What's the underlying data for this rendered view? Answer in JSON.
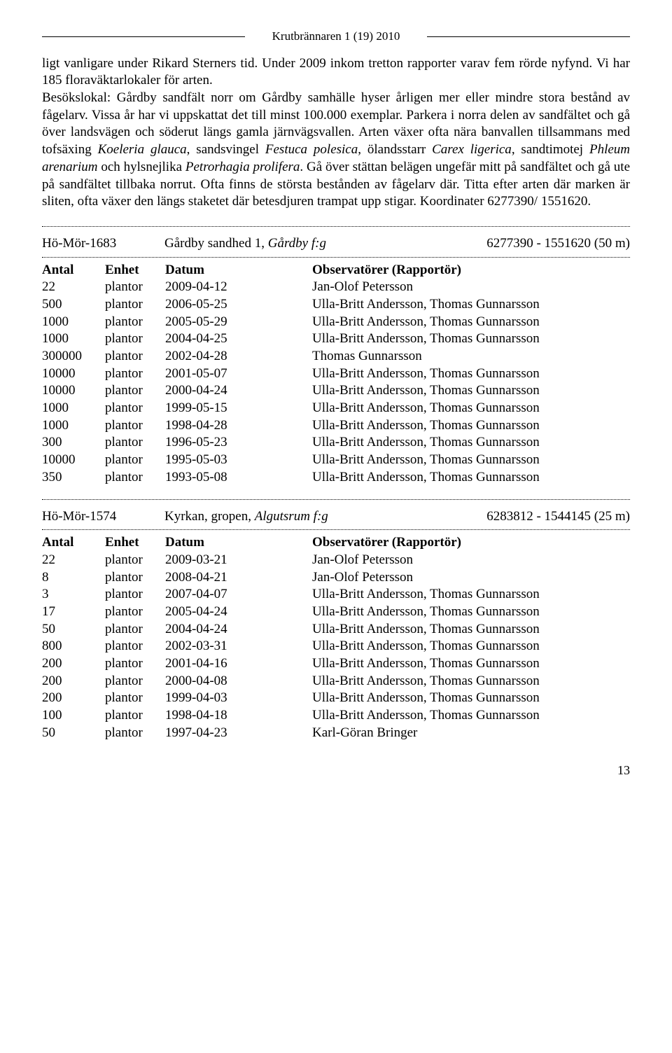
{
  "header": "Krutbrännaren 1 (19) 2010",
  "para1_a": "ligt vanligare under Rikard Sterners tid. Under 2009 inkom tretton rapporter varav fem rörde nyfynd. Vi har 185 floraväktarlokaler för arten.",
  "para2_a": "Besökslokal: Gårdby sandfält norr om Gårdby samhälle hyser årligen mer eller mindre stora bestånd av fågelarv. Vissa år har vi uppskattat det till minst 100.000 exemplar. Parkera i norra delen av sandfältet och gå över landsvägen och söderut längs gamla järnvägsvallen. Arten växer ofta nära banvallen tillsammans med tofsäxing ",
  "para2_it1": "Koeleria glauca",
  "para2_b": ", sandsvingel ",
  "para2_it2": "Festuca polesica",
  "para2_c": ", ölandsstarr ",
  "para2_it3": "Carex ligerica",
  "para2_d": ", sandtimotej ",
  "para2_it4": "Phleum arenarium",
  "para2_e": " och hylsnejlika ",
  "para2_it5": "Petrorhagia prolifera",
  "para2_f": ". Gå över stättan belägen ungefär mitt på sandfältet och gå ute på sandfältet tillbaka norrut. Ofta finns de största bestånden av fågelarv där. Titta efter arten där marken är sliten, ofta växer den längs staketet där betesdjuren trampat upp stigar. Koordinater 6277390/ 1551620.",
  "loc1": {
    "id": "Hö-Mör-1683",
    "name_a": "Gårdby sandhed 1, ",
    "name_it": "Gårdby f:g",
    "coords": "6277390 - 1551620 (50 m)"
  },
  "loc2": {
    "id": "Hö-Mör-1574",
    "name_a": "Kyrkan, gropen, ",
    "name_it": "Algutsrum f:g",
    "coords": "6283812 - 1544145 (25 m)"
  },
  "th": {
    "antal": "Antal",
    "enhet": "Enhet",
    "datum": "Datum",
    "obs": "Observatörer (Rapportör)"
  },
  "t1": [
    {
      "a": "22",
      "e": "plantor",
      "d": "2009-04-12",
      "o": "Jan-Olof Petersson"
    },
    {
      "a": "500",
      "e": "plantor",
      "d": "2006-05-25",
      "o": "Ulla-Britt Andersson, Thomas Gunnarsson"
    },
    {
      "a": "1000",
      "e": "plantor",
      "d": "2005-05-29",
      "o": "Ulla-Britt Andersson, Thomas Gunnarsson"
    },
    {
      "a": "1000",
      "e": "plantor",
      "d": "2004-04-25",
      "o": "Ulla-Britt Andersson, Thomas Gunnarsson"
    },
    {
      "a": "300000",
      "e": "plantor",
      "d": "2002-04-28",
      "o": "Thomas Gunnarsson"
    },
    {
      "a": "10000",
      "e": "plantor",
      "d": "2001-05-07",
      "o": "Ulla-Britt Andersson, Thomas Gunnarsson"
    },
    {
      "a": "10000",
      "e": "plantor",
      "d": "2000-04-24",
      "o": "Ulla-Britt Andersson, Thomas Gunnarsson"
    },
    {
      "a": "1000",
      "e": "plantor",
      "d": "1999-05-15",
      "o": "Ulla-Britt Andersson, Thomas Gunnarsson"
    },
    {
      "a": "1000",
      "e": "plantor",
      "d": "1998-04-28",
      "o": "Ulla-Britt Andersson, Thomas Gunnarsson"
    },
    {
      "a": "300",
      "e": "plantor",
      "d": "1996-05-23",
      "o": "Ulla-Britt Andersson, Thomas Gunnarsson"
    },
    {
      "a": "10000",
      "e": "plantor",
      "d": "1995-05-03",
      "o": "Ulla-Britt Andersson, Thomas Gunnarsson"
    },
    {
      "a": "350",
      "e": "plantor",
      "d": "1993-05-08",
      "o": "Ulla-Britt Andersson, Thomas Gunnarsson"
    }
  ],
  "t2": [
    {
      "a": "22",
      "e": "plantor",
      "d": "2009-03-21",
      "o": "Jan-Olof Petersson"
    },
    {
      "a": "8",
      "e": "plantor",
      "d": "2008-04-21",
      "o": "Jan-Olof Petersson"
    },
    {
      "a": "3",
      "e": "plantor",
      "d": "2007-04-07",
      "o": "Ulla-Britt Andersson, Thomas Gunnarsson"
    },
    {
      "a": "17",
      "e": "plantor",
      "d": "2005-04-24",
      "o": "Ulla-Britt Andersson, Thomas Gunnarsson"
    },
    {
      "a": "50",
      "e": "plantor",
      "d": "2004-04-24",
      "o": "Ulla-Britt Andersson, Thomas Gunnarsson"
    },
    {
      "a": "800",
      "e": "plantor",
      "d": "2002-03-31",
      "o": "Ulla-Britt Andersson, Thomas Gunnarsson"
    },
    {
      "a": "200",
      "e": "plantor",
      "d": "2001-04-16",
      "o": "Ulla-Britt Andersson, Thomas Gunnarsson"
    },
    {
      "a": "200",
      "e": "plantor",
      "d": "2000-04-08",
      "o": "Ulla-Britt Andersson, Thomas Gunnarsson"
    },
    {
      "a": "200",
      "e": "plantor",
      "d": "1999-04-03",
      "o": "Ulla-Britt Andersson, Thomas Gunnarsson"
    },
    {
      "a": "100",
      "e": "plantor",
      "d": "1998-04-18",
      "o": "Ulla-Britt Andersson, Thomas Gunnarsson"
    },
    {
      "a": "50",
      "e": "plantor",
      "d": "1997-04-23",
      "o": "Karl-Göran Bringer"
    }
  ],
  "page_num": "13"
}
